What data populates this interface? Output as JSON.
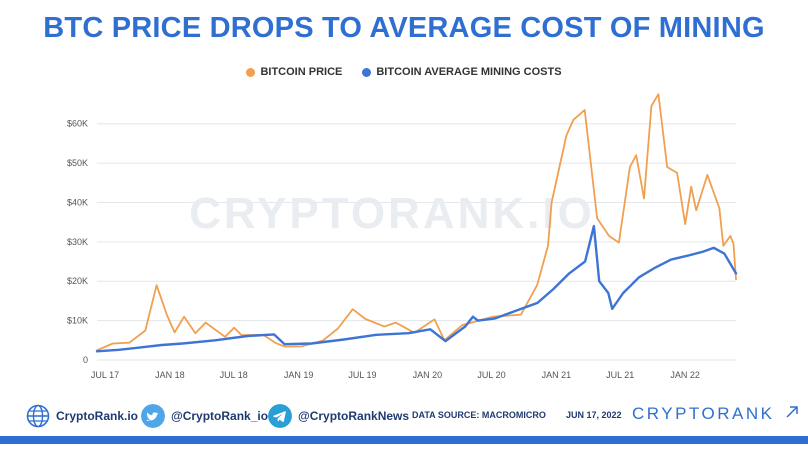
{
  "title": "BTC PRICE DROPS TO AVERAGE COST OF MINING",
  "watermark": "CRYPTORANK.IO",
  "colors": {
    "price": "#f0a050",
    "cost": "#3d74d6",
    "title": "#2f6fd1",
    "grid": "#e3e6ea"
  },
  "footer": {
    "site": "CryptoRank.io",
    "twitter": "@CryptoRank_io",
    "telegram": "@CryptoRankNews",
    "source": "DATA SOURCE: MACROMICRO",
    "date": "JUN 17, 2022",
    "brand": "CRYPTORANK",
    "icons": [
      "globe-icon",
      "twitter-icon",
      "telegram-icon",
      "arrow-up-right-icon"
    ]
  },
  "chart_data": {
    "type": "line",
    "legend": [
      "BITCOIN PRICE",
      "BITCOIN AVERAGE MINING COSTS"
    ],
    "legend_position": "top-center",
    "grid": true,
    "ylim": [
      0,
      65000
    ],
    "yticks": [
      0,
      10000,
      20000,
      30000,
      40000,
      50000,
      60000
    ],
    "ytick_labels": [
      "0",
      "$10K",
      "$20K",
      "$30K",
      "$40K",
      "$50K",
      "$60K"
    ],
    "xticks": [
      "2017-07-01",
      "2018-01-01",
      "2018-07-01",
      "2019-01-01",
      "2019-07-01",
      "2020-01-01",
      "2020-07-01",
      "2021-01-01",
      "2021-07-01",
      "2022-01-01"
    ],
    "xtick_labels": [
      "JUL 17",
      "JAN 18",
      "JUL 18",
      "JAN 19",
      "JUL 19",
      "JAN 20",
      "JUL 20",
      "JAN 21",
      "JUL 21",
      "JAN 22"
    ],
    "xlim": [
      "2017-07-01",
      "2022-06-17"
    ],
    "series": [
      {
        "name": "BITCOIN PRICE",
        "x": [
          "2017-07-01",
          "2017-08-15",
          "2017-10-01",
          "2017-11-15",
          "2017-12-17",
          "2018-01-15",
          "2018-02-06",
          "2018-03-05",
          "2018-04-06",
          "2018-05-05",
          "2018-06-29",
          "2018-07-25",
          "2018-08-15",
          "2018-10-15",
          "2018-11-20",
          "2018-12-15",
          "2019-02-01",
          "2019-04-02",
          "2019-05-15",
          "2019-06-26",
          "2019-08-01",
          "2019-09-24",
          "2019-10-26",
          "2019-12-18",
          "2020-02-13",
          "2020-03-12",
          "2020-05-01",
          "2020-07-27",
          "2020-10-15",
          "2020-11-30",
          "2020-12-31",
          "2021-01-10",
          "2021-02-21",
          "2021-03-13",
          "2021-04-14",
          "2021-05-19",
          "2021-06-22",
          "2021-07-20",
          "2021-08-20",
          "2021-09-07",
          "2021-09-29",
          "2021-10-20",
          "2021-11-09",
          "2021-12-04",
          "2022-01-01",
          "2022-01-24",
          "2022-02-10",
          "2022-02-24",
          "2022-03-28",
          "2022-05-01",
          "2022-05-12",
          "2022-06-01",
          "2022-06-10",
          "2022-06-17"
        ],
        "y": [
          2500,
          4200,
          4400,
          7500,
          19000,
          11500,
          7000,
          11000,
          6800,
          9500,
          5900,
          8200,
          6300,
          6400,
          4300,
          3400,
          3450,
          4900,
          8000,
          12900,
          10400,
          8500,
          9500,
          6900,
          10300,
          5000,
          8800,
          11000,
          11500,
          19000,
          29000,
          40000,
          57000,
          61000,
          63500,
          36000,
          31500,
          29800,
          49000,
          52000,
          41000,
          64500,
          67500,
          49000,
          47500,
          34500,
          44000,
          38000,
          47000,
          38500,
          29000,
          31500,
          29500,
          20500
        ]
      },
      {
        "name": "BITCOIN AVERAGE MINING COSTS",
        "x": [
          "2017-07-01",
          "2017-09-01",
          "2017-11-01",
          "2018-01-01",
          "2018-03-01",
          "2018-06-01",
          "2018-09-01",
          "2018-11-15",
          "2018-12-15",
          "2019-03-01",
          "2019-06-01",
          "2019-09-01",
          "2019-12-01",
          "2020-02-01",
          "2020-03-15",
          "2020-05-10",
          "2020-06-01",
          "2020-06-15",
          "2020-08-01",
          "2020-10-01",
          "2020-12-01",
          "2021-01-15",
          "2021-03-01",
          "2021-04-15",
          "2021-05-10",
          "2021-05-25",
          "2021-06-20",
          "2021-07-01",
          "2021-08-01",
          "2021-09-15",
          "2021-11-01",
          "2021-12-15",
          "2022-02-01",
          "2022-03-15",
          "2022-04-15",
          "2022-05-15",
          "2022-06-17"
        ],
        "y": [
          2200,
          2600,
          3200,
          3800,
          4200,
          5000,
          6100,
          6500,
          4000,
          4200,
          5200,
          6400,
          6800,
          7800,
          4800,
          8500,
          11000,
          10000,
          10500,
          12500,
          14500,
          18000,
          22000,
          25000,
          34000,
          20000,
          17000,
          13000,
          17000,
          21000,
          23500,
          25500,
          26500,
          27500,
          28500,
          27000,
          22000
        ]
      }
    ]
  }
}
